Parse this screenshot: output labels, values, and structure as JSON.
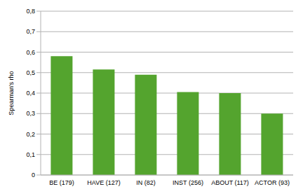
{
  "chart_data": {
    "type": "bar",
    "y_label": "Spearman's rho",
    "categories": [
      "BE (179)",
      "HAVE (127)",
      "IN (82)",
      "INST (256)",
      "ABOUT (117)",
      "ACTOR (93)"
    ],
    "values": [
      0.58,
      0.515,
      0.49,
      0.405,
      0.4,
      0.3
    ],
    "color": "#54a42e",
    "ylim": [
      0,
      0.8
    ],
    "yticks": [
      0,
      {
        "value": 0.1,
        "label": "0,1"
      },
      {
        "value": 0.2,
        "label": "0,2"
      },
      {
        "value": 0.3,
        "label": "0,3"
      },
      {
        "value": 0.4,
        "label": "0,4"
      },
      {
        "value": 0.5,
        "label": "0,5"
      },
      {
        "value": 0.6,
        "label": "0,6"
      },
      {
        "value": 0.7,
        "label": "0,7"
      },
      {
        "value": 0.8,
        "label": "0,8"
      }
    ],
    "grid": true
  }
}
